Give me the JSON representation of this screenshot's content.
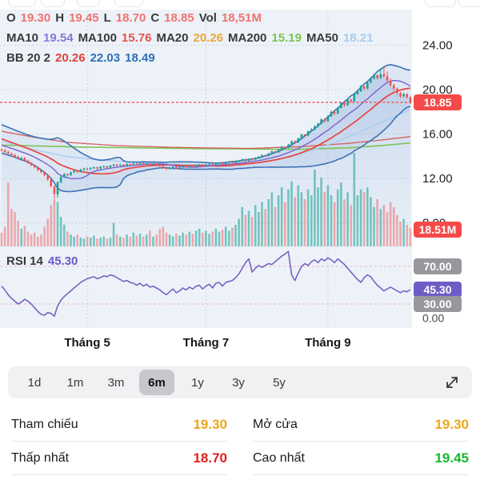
{
  "legend": {
    "colors": {
      "label": "#3a3a3c",
      "pink": "#f0736f",
      "purple": "#8677d6",
      "red": "#e4534e",
      "orange": "#e7a83c",
      "green": "#7cc353",
      "lightblue": "#a9cdf1",
      "red2": "#e0403c",
      "blue": "#2e6fb7",
      "purple2": "#6b59c8"
    },
    "rows": [
      {
        "name": "ohlc-row",
        "segments": [
          {
            "t": "O",
            "c": "label"
          },
          {
            "t": "19.30",
            "c": "pink"
          },
          {
            "t": "H",
            "c": "label"
          },
          {
            "t": "19.45",
            "c": "pink"
          },
          {
            "t": "L",
            "c": "label"
          },
          {
            "t": "18.70",
            "c": "pink"
          },
          {
            "t": "C",
            "c": "label"
          },
          {
            "t": "18.85",
            "c": "pink"
          },
          {
            "t": "Vol",
            "c": "label"
          },
          {
            "t": "18,51M",
            "c": "pink"
          }
        ]
      },
      {
        "name": "ma-row",
        "segments": [
          {
            "t": "MA10",
            "c": "label"
          },
          {
            "t": "19.54",
            "c": "purple"
          },
          {
            "t": "MA100",
            "c": "label"
          },
          {
            "t": "15.76",
            "c": "red"
          },
          {
            "t": "MA20",
            "c": "label"
          },
          {
            "t": "20.26",
            "c": "orange"
          },
          {
            "t": "MA200",
            "c": "label"
          },
          {
            "t": "15.19",
            "c": "green"
          },
          {
            "t": "MA50",
            "c": "label"
          },
          {
            "t": "18.21",
            "c": "lightblue"
          }
        ]
      },
      {
        "name": "bb-row",
        "segments": [
          {
            "t": "BB 20 2",
            "c": "label"
          },
          {
            "t": "20.26",
            "c": "red2"
          },
          {
            "t": "22.03",
            "c": "blue"
          },
          {
            "t": "18.49",
            "c": "blue"
          }
        ]
      }
    ]
  },
  "rsi_label": {
    "segments": [
      {
        "t": "RSI 14",
        "c": "label"
      },
      {
        "t": "45.30",
        "c": "purple2"
      }
    ]
  },
  "range_selector": {
    "options": [
      {
        "label": "1d",
        "selected": false
      },
      {
        "label": "1m",
        "selected": false
      },
      {
        "label": "3m",
        "selected": false
      },
      {
        "label": "6m",
        "selected": true
      },
      {
        "label": "1y",
        "selected": false
      },
      {
        "label": "3y",
        "selected": false
      },
      {
        "label": "5y",
        "selected": false
      }
    ],
    "expand_icon": "expand-arrows"
  },
  "stats": {
    "rows": [
      [
        {
          "label": "Tham chiếu",
          "value": "19.30",
          "color": "#e9a71e"
        },
        {
          "label": "Mở cửa",
          "value": "19.30",
          "color": "#e9a71e"
        }
      ],
      [
        {
          "label": "Thấp nhất",
          "value": "18.70",
          "color": "#e01e1e"
        },
        {
          "label": "Cao nhất",
          "value": "19.45",
          "color": "#13b92d"
        }
      ]
    ]
  },
  "chart_data": {
    "type": "candlestick",
    "panes": [
      "price",
      "volume",
      "rsi"
    ],
    "title": "",
    "price_axis_ticks": [
      {
        "label": "24.00",
        "value": 24
      },
      {
        "label": "20.00",
        "value": 20
      },
      {
        "label": "16.00",
        "value": 16
      },
      {
        "label": "12.00",
        "value": 12
      },
      {
        "label": "8.00",
        "value": 8
      }
    ],
    "price_badge": {
      "label": "18.85",
      "value": 18.85
    },
    "volume_badge": {
      "label": "18.51M",
      "value": 18.51
    },
    "rsi_badges": [
      {
        "label": "70.00",
        "value": 70,
        "bg": "#97979d"
      },
      {
        "label": "45.30",
        "value": 45.3,
        "bg": "#6d5dc6"
      },
      {
        "label": "30.00",
        "value": 30,
        "bg": "#97979d"
      }
    ],
    "rsi_zero_label": "0.00",
    "x_ticks": [
      {
        "label": "Tháng 5",
        "index": 26
      },
      {
        "label": "Tháng 7",
        "index": 62
      },
      {
        "label": "Tháng 9",
        "index": 99
      }
    ],
    "current_price_line": 18.85,
    "ylim_price": [
      8,
      24
    ],
    "rsi_guides": [
      70,
      30
    ],
    "colors": {
      "bg": "#edf2f8",
      "up": "#1ea294",
      "down": "#ef5350",
      "vol_up": "rgba(38,166,154,0.6)",
      "vol_down": "rgba(239,83,80,0.45)",
      "bb": "#3f72b4",
      "bb_fill": "rgba(90,140,210,0.10)",
      "sma20": "#e8433f",
      "ma10": "#7a63cf",
      "ma50": "#a9cdf1",
      "ma100": "#d2605c",
      "ma200": "#7cc353",
      "rsi": "#7465c2",
      "grid": "#bcc4d0",
      "rsi_guide": "#efb4c2",
      "price_line": "#f14f4d",
      "badge_red": "#f54a49",
      "axis_text": "#1e1e20"
    },
    "prehistory": [
      16.6,
      16.5,
      16.45,
      16.3,
      16.2,
      16.1,
      15.95,
      15.85,
      15.7,
      15.6,
      15.5,
      15.35,
      15.25,
      15.1,
      15.0,
      14.9,
      14.85,
      14.75,
      14.65,
      14.6
    ],
    "candles": [
      [
        14.6,
        14.72,
        14.42,
        14.55
      ],
      [
        14.55,
        14.62,
        14.28,
        14.4
      ],
      [
        14.4,
        14.48,
        14.15,
        14.25
      ],
      [
        14.25,
        14.32,
        14.02,
        14.12
      ],
      [
        14.12,
        14.2,
        13.86,
        13.95
      ],
      [
        13.95,
        14.05,
        13.7,
        13.8
      ],
      [
        13.8,
        13.95,
        13.72,
        13.85
      ],
      [
        13.85,
        13.9,
        13.52,
        13.6
      ],
      [
        13.6,
        13.68,
        13.3,
        13.4
      ],
      [
        13.4,
        13.48,
        13.1,
        13.2
      ],
      [
        13.2,
        13.28,
        12.9,
        13.0
      ],
      [
        13.0,
        13.06,
        12.65,
        12.75
      ],
      [
        12.75,
        12.85,
        12.45,
        12.55
      ],
      [
        12.55,
        12.6,
        12.2,
        12.3
      ],
      [
        12.3,
        12.38,
        11.78,
        11.9
      ],
      [
        11.9,
        11.95,
        11.18,
        11.3
      ],
      [
        11.3,
        11.35,
        10.2,
        10.6
      ],
      [
        10.55,
        11.75,
        10.25,
        11.65
      ],
      [
        11.65,
        12.25,
        11.55,
        12.15
      ],
      [
        12.15,
        12.5,
        12.05,
        12.4
      ],
      [
        12.4,
        12.48,
        12.18,
        12.3
      ],
      [
        12.3,
        12.62,
        12.22,
        12.55
      ],
      [
        12.55,
        12.78,
        12.45,
        12.7
      ],
      [
        12.7,
        12.76,
        12.48,
        12.6
      ],
      [
        12.6,
        12.88,
        12.52,
        12.8
      ],
      [
        12.8,
        12.98,
        12.7,
        12.9
      ],
      [
        12.9,
        12.96,
        12.72,
        12.85
      ],
      [
        12.85,
        13.02,
        12.76,
        12.95
      ],
      [
        12.95,
        13.08,
        12.85,
        13.0
      ],
      [
        13.0,
        13.05,
        12.8,
        12.9
      ],
      [
        12.9,
        13.12,
        12.82,
        13.05
      ],
      [
        13.05,
        13.16,
        12.95,
        13.1
      ],
      [
        13.1,
        13.15,
        12.9,
        13.0
      ],
      [
        13.0,
        13.22,
        12.92,
        13.15
      ],
      [
        13.15,
        13.3,
        13.08,
        13.26
      ],
      [
        13.26,
        13.32,
        13.05,
        13.18
      ],
      [
        13.18,
        13.32,
        13.1,
        13.25
      ],
      [
        13.25,
        13.3,
        13.05,
        13.15
      ],
      [
        13.15,
        13.36,
        13.08,
        13.3
      ],
      [
        13.3,
        13.35,
        13.14,
        13.25
      ],
      [
        13.25,
        13.42,
        13.16,
        13.35
      ],
      [
        13.35,
        13.4,
        13.2,
        13.3
      ],
      [
        13.3,
        13.46,
        13.22,
        13.4
      ],
      [
        13.4,
        13.44,
        13.2,
        13.3
      ],
      [
        13.3,
        13.42,
        13.22,
        13.35
      ],
      [
        13.35,
        13.4,
        13.14,
        13.25
      ],
      [
        13.25,
        13.38,
        13.18,
        13.3
      ],
      [
        13.3,
        13.35,
        13.1,
        13.2
      ],
      [
        13.2,
        13.26,
        13.0,
        13.1
      ],
      [
        13.1,
        13.15,
        12.85,
        12.95
      ],
      [
        12.95,
        13.02,
        12.75,
        12.85
      ],
      [
        12.85,
        13.02,
        12.78,
        12.95
      ],
      [
        12.95,
        13.12,
        12.88,
        13.05
      ],
      [
        13.05,
        13.1,
        12.82,
        12.9
      ],
      [
        12.9,
        13.06,
        12.82,
        13.0
      ],
      [
        13.0,
        13.16,
        12.92,
        13.1
      ],
      [
        13.1,
        13.15,
        12.95,
        13.05
      ],
      [
        13.05,
        13.21,
        12.98,
        13.15
      ],
      [
        13.15,
        13.2,
        13.0,
        13.1
      ],
      [
        13.1,
        13.26,
        13.02,
        13.2
      ],
      [
        13.2,
        13.31,
        13.12,
        13.25
      ],
      [
        13.25,
        13.3,
        13.05,
        13.15
      ],
      [
        13.15,
        13.32,
        13.08,
        13.25
      ],
      [
        13.25,
        13.37,
        13.16,
        13.3
      ],
      [
        13.3,
        13.35,
        13.1,
        13.2
      ],
      [
        13.2,
        13.42,
        13.12,
        13.35
      ],
      [
        13.35,
        13.47,
        13.25,
        13.4
      ],
      [
        13.4,
        13.45,
        13.22,
        13.3
      ],
      [
        13.3,
        13.52,
        13.24,
        13.45
      ],
      [
        13.45,
        13.57,
        13.35,
        13.5
      ],
      [
        13.5,
        13.55,
        13.3,
        13.4
      ],
      [
        13.4,
        13.62,
        13.34,
        13.55
      ],
      [
        13.55,
        13.67,
        13.45,
        13.6
      ],
      [
        13.6,
        13.78,
        13.52,
        13.72
      ],
      [
        13.72,
        13.77,
        13.5,
        13.58
      ],
      [
        13.58,
        13.82,
        13.52,
        13.75
      ],
      [
        13.75,
        13.8,
        13.6,
        13.7
      ],
      [
        13.7,
        13.92,
        13.62,
        13.85
      ],
      [
        13.85,
        14.02,
        13.78,
        13.95
      ],
      [
        13.95,
        14.18,
        13.88,
        14.1
      ],
      [
        14.1,
        14.15,
        13.95,
        14.05
      ],
      [
        14.05,
        14.32,
        13.98,
        14.25
      ],
      [
        14.25,
        14.52,
        14.18,
        14.45
      ],
      [
        14.45,
        14.5,
        14.25,
        14.35
      ],
      [
        14.35,
        14.68,
        14.28,
        14.6
      ],
      [
        14.6,
        14.93,
        14.52,
        14.85
      ],
      [
        14.85,
        14.9,
        14.62,
        14.75
      ],
      [
        14.75,
        15.12,
        14.68,
        15.05
      ],
      [
        15.05,
        15.43,
        14.98,
        15.35
      ],
      [
        15.35,
        15.42,
        15.12,
        15.25
      ],
      [
        15.25,
        15.68,
        15.18,
        15.6
      ],
      [
        15.6,
        16.03,
        15.52,
        15.95
      ],
      [
        15.95,
        16.02,
        15.72,
        15.85
      ],
      [
        15.85,
        16.33,
        15.78,
        16.25
      ],
      [
        16.25,
        16.55,
        16.18,
        16.4
      ],
      [
        16.4,
        16.78,
        16.32,
        16.68
      ],
      [
        16.68,
        17.02,
        16.6,
        16.92
      ],
      [
        16.92,
        17.42,
        16.85,
        17.32
      ],
      [
        17.32,
        17.4,
        17.02,
        17.15
      ],
      [
        17.15,
        17.7,
        17.08,
        17.6
      ],
      [
        17.6,
        18.1,
        17.52,
        18.0
      ],
      [
        18.0,
        18.08,
        17.7,
        17.85
      ],
      [
        17.85,
        18.45,
        17.78,
        18.35
      ],
      [
        18.35,
        18.92,
        18.28,
        18.8
      ],
      [
        18.8,
        18.88,
        18.45,
        18.6
      ],
      [
        18.6,
        19.22,
        18.52,
        19.1
      ],
      [
        19.1,
        19.18,
        18.8,
        18.95
      ],
      [
        18.95,
        19.72,
        18.88,
        19.6
      ],
      [
        19.6,
        19.98,
        19.5,
        19.85
      ],
      [
        19.85,
        20.42,
        19.78,
        20.3
      ],
      [
        20.3,
        20.38,
        19.95,
        20.1
      ],
      [
        20.1,
        20.77,
        20.02,
        20.65
      ],
      [
        20.65,
        21.12,
        20.55,
        21.0
      ],
      [
        21.0,
        21.42,
        20.9,
        21.3
      ],
      [
        21.3,
        21.38,
        20.9,
        21.05
      ],
      [
        21.05,
        21.95,
        20.95,
        21.4
      ],
      [
        21.4,
        22.05,
        21.05,
        21.2
      ],
      [
        21.2,
        21.62,
        20.7,
        20.8
      ],
      [
        20.8,
        21.0,
        20.25,
        20.4
      ],
      [
        20.4,
        20.55,
        19.95,
        20.1
      ],
      [
        20.1,
        20.2,
        19.55,
        19.7
      ],
      [
        19.7,
        19.8,
        19.25,
        19.4
      ],
      [
        19.4,
        19.72,
        19.3,
        19.6
      ],
      [
        19.6,
        19.66,
        19.2,
        19.3
      ],
      [
        19.3,
        19.45,
        18.7,
        18.85
      ]
    ],
    "volumes": [
      14,
      20,
      65,
      38,
      35,
      26,
      18,
      21,
      15,
      12,
      14,
      10,
      12,
      20,
      28,
      42,
      48,
      45,
      30,
      22,
      15,
      12,
      10,
      12,
      9,
      8,
      10,
      9,
      11,
      8,
      9,
      10,
      8,
      9,
      24,
      12,
      10,
      9,
      12,
      10,
      14,
      11,
      13,
      10,
      12,
      16,
      10,
      12,
      18,
      20,
      14,
      12,
      10,
      13,
      11,
      14,
      12,
      15,
      13,
      16,
      18,
      14,
      16,
      13,
      15,
      18,
      15,
      17,
      20,
      16,
      19,
      22,
      28,
      40,
      32,
      36,
      30,
      42,
      35,
      45,
      38,
      48,
      55,
      40,
      52,
      60,
      45,
      58,
      66,
      50,
      62,
      55,
      48,
      58,
      52,
      78,
      60,
      70,
      55,
      62,
      52,
      45,
      58,
      65,
      48,
      55,
      42,
      95,
      52,
      58,
      55,
      60,
      50,
      40,
      48,
      38,
      42,
      35,
      45,
      40,
      32,
      25,
      28,
      22,
      18.51
    ],
    "rsi": [
      49,
      45,
      40,
      36,
      33,
      30,
      32,
      35,
      33,
      30,
      26,
      22,
      19,
      18,
      21,
      20,
      17,
      28,
      34,
      38,
      41,
      44,
      47,
      50,
      53,
      55,
      57,
      58,
      59,
      57,
      58,
      60,
      59,
      61,
      60,
      58,
      56,
      54,
      55,
      53,
      52,
      50,
      52,
      49,
      51,
      48,
      49,
      47,
      45,
      42,
      40,
      43,
      46,
      42,
      44,
      47,
      45,
      48,
      46,
      49,
      50,
      46,
      49,
      51,
      47,
      52,
      53,
      49,
      53,
      54,
      55,
      58,
      62,
      68,
      74,
      78,
      64,
      68,
      71,
      69,
      71,
      73,
      72,
      75,
      78,
      81,
      83,
      86,
      61,
      55,
      63,
      70,
      73,
      71,
      75,
      77,
      74,
      78,
      76,
      79,
      77,
      74,
      78,
      75,
      72,
      68,
      64,
      60,
      56,
      53,
      58,
      61,
      59,
      54,
      50,
      47,
      44,
      46,
      48,
      46,
      44,
      42,
      44,
      43,
      45.3
    ],
    "overlays": {
      "ma50": [
        [
          0,
          15.35
        ],
        [
          12,
          14.45
        ],
        [
          20,
          13.95
        ],
        [
          35,
          13.55
        ],
        [
          50,
          13.32
        ],
        [
          65,
          13.2
        ],
        [
          78,
          13.38
        ],
        [
          88,
          13.95
        ],
        [
          95,
          14.6
        ],
        [
          102,
          15.35
        ],
        [
          108,
          16.1
        ],
        [
          114,
          16.9
        ],
        [
          119,
          17.55
        ],
        [
          124,
          18.21
        ]
      ],
      "ma100": [
        [
          0,
          16.25
        ],
        [
          10,
          15.7
        ],
        [
          20,
          15.25
        ],
        [
          35,
          14.95
        ],
        [
          55,
          14.78
        ],
        [
          75,
          14.7
        ],
        [
          90,
          14.85
        ],
        [
          105,
          15.15
        ],
        [
          115,
          15.45
        ],
        [
          124,
          15.76
        ]
      ],
      "ma200": [
        [
          0,
          15.0
        ],
        [
          25,
          14.82
        ],
        [
          60,
          14.68
        ],
        [
          90,
          14.62
        ],
        [
          105,
          14.75
        ],
        [
          115,
          14.95
        ],
        [
          124,
          15.19
        ]
      ]
    }
  }
}
